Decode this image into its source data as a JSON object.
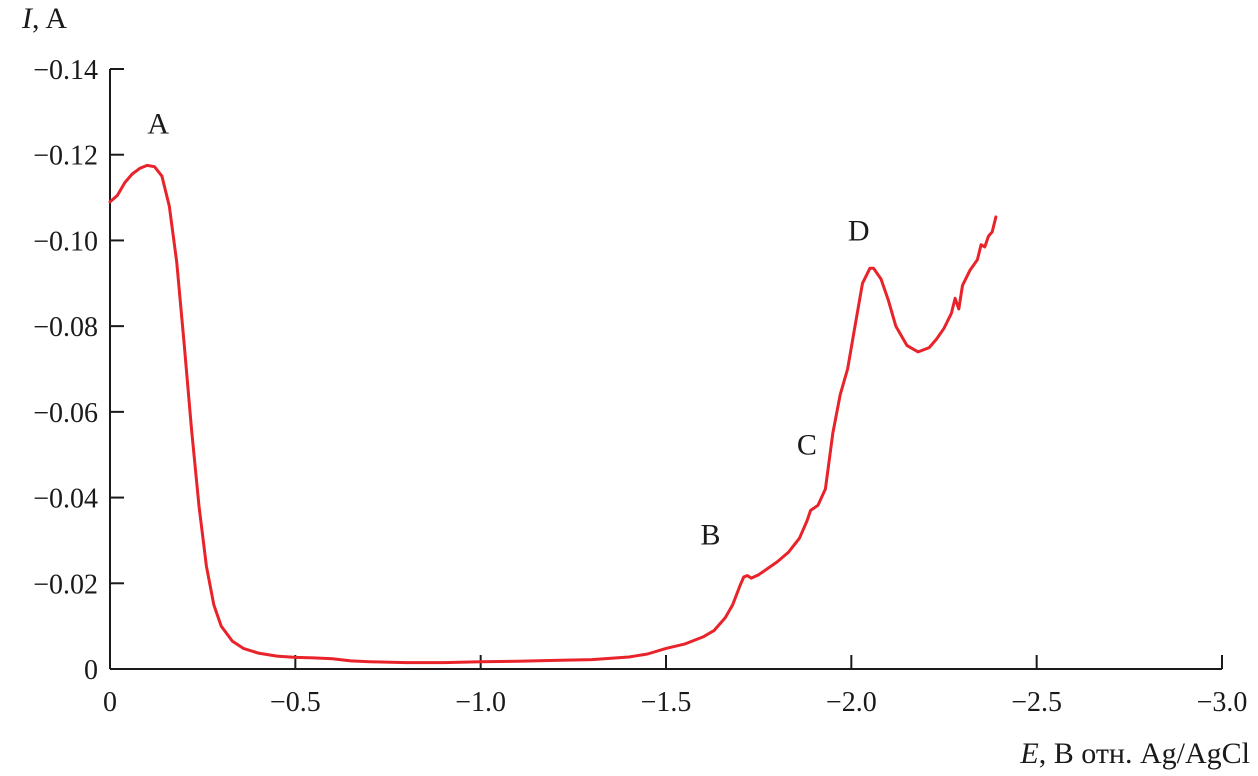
{
  "chart_data": {
    "type": "line",
    "title": "",
    "ylabel": {
      "symbol": "I",
      "rest": ", A"
    },
    "xlabel": {
      "symbol": "E",
      "rest": ", В отн. Ag/AgCl"
    },
    "xlim": [
      0,
      -3.0
    ],
    "ylim": [
      0,
      -0.14
    ],
    "x_ticks": [
      {
        "value": 0,
        "label": "0"
      },
      {
        "value": -0.5,
        "label": "−0.5"
      },
      {
        "value": -1.0,
        "label": "−1.0"
      },
      {
        "value": -1.5,
        "label": "−1.5"
      },
      {
        "value": -2.0,
        "label": "−2.0"
      },
      {
        "value": -2.5,
        "label": "−2.5"
      },
      {
        "value": -3.0,
        "label": "−3.0"
      }
    ],
    "y_ticks": [
      {
        "value": 0,
        "label": "0"
      },
      {
        "value": -0.02,
        "label": "−0.02"
      },
      {
        "value": -0.04,
        "label": "−0.04"
      },
      {
        "value": -0.06,
        "label": "−0.06"
      },
      {
        "value": -0.08,
        "label": "−0.08"
      },
      {
        "value": -0.1,
        "label": "−0.10"
      },
      {
        "value": -0.12,
        "label": "−0.12"
      },
      {
        "value": -0.14,
        "label": "−0.14"
      }
    ],
    "grid": false,
    "series": [
      {
        "color": "#e8232a",
        "points": [
          [
            0.0,
            -0.109
          ],
          [
            -0.02,
            -0.1105
          ],
          [
            -0.04,
            -0.1135
          ],
          [
            -0.06,
            -0.1155
          ],
          [
            -0.08,
            -0.1168
          ],
          [
            -0.1,
            -0.1175
          ],
          [
            -0.12,
            -0.1172
          ],
          [
            -0.14,
            -0.115
          ],
          [
            -0.16,
            -0.108
          ],
          [
            -0.18,
            -0.095
          ],
          [
            -0.2,
            -0.076
          ],
          [
            -0.22,
            -0.056
          ],
          [
            -0.24,
            -0.038
          ],
          [
            -0.26,
            -0.024
          ],
          [
            -0.28,
            -0.015
          ],
          [
            -0.3,
            -0.01
          ],
          [
            -0.33,
            -0.0065
          ],
          [
            -0.36,
            -0.0048
          ],
          [
            -0.4,
            -0.0037
          ],
          [
            -0.45,
            -0.003
          ],
          [
            -0.5,
            -0.0027
          ],
          [
            -0.55,
            -0.0026
          ],
          [
            -0.6,
            -0.0024
          ],
          [
            -0.65,
            -0.0019
          ],
          [
            -0.7,
            -0.0017
          ],
          [
            -0.8,
            -0.0015
          ],
          [
            -0.9,
            -0.0015
          ],
          [
            -1.0,
            -0.0017
          ],
          [
            -1.1,
            -0.0018
          ],
          [
            -1.2,
            -0.002
          ],
          [
            -1.3,
            -0.0022
          ],
          [
            -1.4,
            -0.0028
          ],
          [
            -1.45,
            -0.0035
          ],
          [
            -1.5,
            -0.0048
          ],
          [
            -1.55,
            -0.0058
          ],
          [
            -1.6,
            -0.0075
          ],
          [
            -1.63,
            -0.009
          ],
          [
            -1.66,
            -0.012
          ],
          [
            -1.68,
            -0.015
          ],
          [
            -1.7,
            -0.0195
          ],
          [
            -1.71,
            -0.0215
          ],
          [
            -1.72,
            -0.0218
          ],
          [
            -1.73,
            -0.0212
          ],
          [
            -1.75,
            -0.022
          ],
          [
            -1.78,
            -0.0238
          ],
          [
            -1.8,
            -0.025
          ],
          [
            -1.83,
            -0.0272
          ],
          [
            -1.86,
            -0.0305
          ],
          [
            -1.88,
            -0.0345
          ],
          [
            -1.89,
            -0.037
          ],
          [
            -1.91,
            -0.0382
          ],
          [
            -1.93,
            -0.042
          ],
          [
            -1.95,
            -0.055
          ],
          [
            -1.97,
            -0.064
          ],
          [
            -1.99,
            -0.07
          ],
          [
            -2.01,
            -0.08
          ],
          [
            -2.03,
            -0.09
          ],
          [
            -2.05,
            -0.0935
          ],
          [
            -2.06,
            -0.0935
          ],
          [
            -2.08,
            -0.091
          ],
          [
            -2.1,
            -0.086
          ],
          [
            -2.12,
            -0.08
          ],
          [
            -2.15,
            -0.0755
          ],
          [
            -2.18,
            -0.074
          ],
          [
            -2.21,
            -0.075
          ],
          [
            -2.23,
            -0.077
          ],
          [
            -2.25,
            -0.0795
          ],
          [
            -2.27,
            -0.083
          ],
          [
            -2.28,
            -0.0865
          ],
          [
            -2.29,
            -0.084
          ],
          [
            -2.3,
            -0.0895
          ],
          [
            -2.32,
            -0.093
          ],
          [
            -2.34,
            -0.0955
          ],
          [
            -2.35,
            -0.099
          ],
          [
            -2.36,
            -0.0985
          ],
          [
            -2.37,
            -0.101
          ],
          [
            -2.38,
            -0.102
          ],
          [
            -2.39,
            -0.1055
          ]
        ]
      }
    ],
    "annotations": [
      {
        "text": "A",
        "x": -0.13,
        "y": -0.125
      },
      {
        "text": "B",
        "x": -1.62,
        "y": -0.029
      },
      {
        "text": "C",
        "x": -1.88,
        "y": -0.05
      },
      {
        "text": "D",
        "x": -2.02,
        "y": -0.1
      }
    ]
  }
}
